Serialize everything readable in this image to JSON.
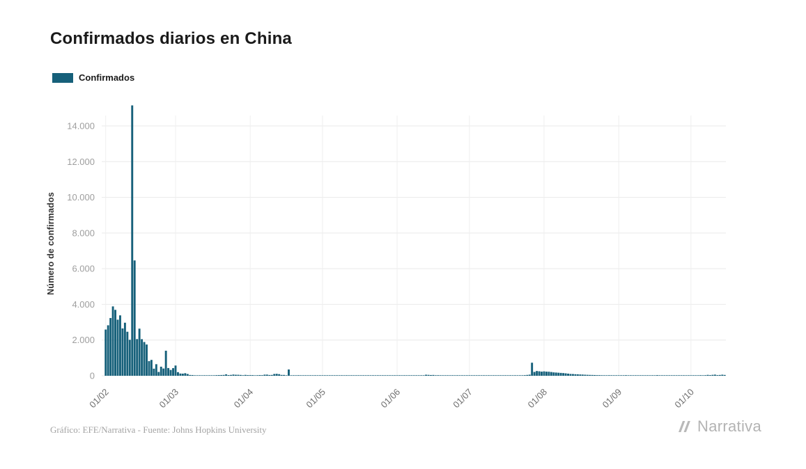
{
  "title": "Confirmados diarios en China",
  "legend": {
    "label": "Confirmados"
  },
  "y_axis_label": "Número de confirmados",
  "footer_credit": "Gráfico: EFE/Narrativa - Fuente: Johns Hopkins University",
  "logo": {
    "text": "Narrativa"
  },
  "chart_data": {
    "type": "bar",
    "title": "Confirmados diarios en China",
    "xlabel": "",
    "ylabel": "Número de confirmados",
    "series_name": "Confirmados",
    "bar_color": "#16607a",
    "grid": true,
    "legend_position": "top-left",
    "ylim": [
      0,
      15200
    ],
    "y_ticks": [
      {
        "value": 0,
        "label": "0"
      },
      {
        "value": 2000,
        "label": "2.000"
      },
      {
        "value": 4000,
        "label": "4.000"
      },
      {
        "value": 6000,
        "label": "6.000"
      },
      {
        "value": 8000,
        "label": "8.000"
      },
      {
        "value": 10000,
        "label": "10.000"
      },
      {
        "value": 12000,
        "label": "12.000"
      },
      {
        "value": 14000,
        "label": "14.000"
      }
    ],
    "x_ticks": [
      {
        "index": 0,
        "label": "01/02"
      },
      {
        "index": 29,
        "label": "01/03"
      },
      {
        "index": 60,
        "label": "01/04"
      },
      {
        "index": 90,
        "label": "01/05"
      },
      {
        "index": 121,
        "label": "01/06"
      },
      {
        "index": 151,
        "label": "01/07"
      },
      {
        "index": 182,
        "label": "01/08"
      },
      {
        "index": 213,
        "label": "01/09"
      },
      {
        "index": 243,
        "label": "01/10"
      }
    ],
    "values": [
      2590,
      2829,
      3235,
      3887,
      3694,
      3143,
      3385,
      2652,
      2973,
      2467,
      2015,
      15152,
      6463,
      2055,
      2641,
      2051,
      1891,
      1751,
      820,
      889,
      397,
      648,
      214,
      508,
      406,
      1403,
      433,
      327,
      427,
      573,
      202,
      125,
      119,
      143,
      99,
      44,
      40,
      19,
      24,
      15,
      20,
      11,
      20,
      16,
      21,
      13,
      34,
      39,
      41,
      46,
      78,
      39,
      47,
      67,
      55,
      54,
      45,
      31,
      48,
      36,
      36,
      35,
      19,
      30,
      39,
      32,
      62,
      63,
      42,
      46,
      99,
      108,
      89,
      46,
      46,
      26,
      352,
      16,
      12,
      11,
      30,
      10,
      6,
      12,
      11,
      3,
      6,
      22,
      4,
      12,
      12,
      2,
      2,
      3,
      2,
      2,
      1,
      1,
      14,
      20,
      17,
      7,
      7,
      3,
      8,
      8,
      7,
      6,
      5,
      5,
      4,
      4,
      3,
      11,
      7,
      7,
      1,
      2,
      4,
      7,
      2,
      16,
      1,
      1,
      2,
      5,
      9,
      4,
      4,
      3,
      11,
      7,
      11,
      57,
      49,
      40,
      44,
      28,
      32,
      27,
      26,
      26,
      22,
      19,
      13,
      21,
      21,
      17,
      12,
      19,
      3,
      3,
      5,
      5,
      8,
      4,
      8,
      8,
      9,
      4,
      4,
      7,
      8,
      10,
      6,
      11,
      10,
      22,
      22,
      22,
      17,
      14,
      19,
      28,
      34,
      46,
      61,
      731,
      215,
      266,
      250,
      231,
      246,
      230,
      226,
      210,
      190,
      180,
      170,
      160,
      150,
      136,
      119,
      101,
      96,
      85,
      80,
      72,
      66,
      58,
      52,
      47,
      44,
      40,
      36,
      33,
      30,
      27,
      25,
      30,
      28,
      26,
      24,
      22,
      25,
      28,
      32,
      26,
      24,
      21,
      19,
      17,
      21,
      18,
      23,
      20,
      17,
      15,
      16,
      34,
      18,
      20,
      16,
      13,
      14,
      16,
      19,
      20,
      25,
      28,
      26,
      22,
      25,
      16,
      20,
      22,
      25,
      31,
      27,
      31,
      49,
      35,
      51,
      62,
      36,
      44,
      59,
      45
    ]
  }
}
